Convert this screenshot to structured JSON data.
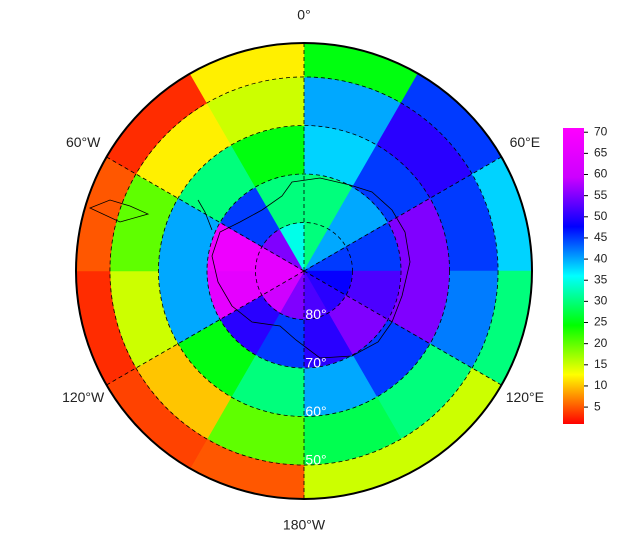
{
  "chart_data": {
    "type": "polar-heatmap",
    "lon_labels": [
      {
        "value": 0,
        "label": "0°"
      },
      {
        "value": 60,
        "label": "60°E"
      },
      {
        "value": 120,
        "label": "120°E"
      },
      {
        "value": 180,
        "label": "180°W"
      },
      {
        "value": 240,
        "label": "120°W"
      },
      {
        "value": 300,
        "label": "60°W"
      }
    ],
    "lat_circles": [
      {
        "value": -80,
        "label": "80°"
      },
      {
        "value": -70,
        "label": "70°"
      },
      {
        "value": -60,
        "label": "60°"
      },
      {
        "value": -50,
        "label": "50°"
      }
    ],
    "rlim": [
      -90,
      -43
    ],
    "lat_edges": [
      -90,
      -80,
      -70,
      -60,
      -50,
      -43
    ],
    "lon_edges": [
      0,
      30,
      60,
      90,
      120,
      150,
      180,
      210,
      240,
      270,
      300,
      330,
      360
    ],
    "values": [
      [
        30,
        40,
        45,
        48,
        50,
        52,
        55,
        60,
        65,
        65,
        55,
        35
      ],
      [
        30,
        40,
        45,
        52,
        55,
        50,
        45,
        50,
        65,
        67,
        45,
        30
      ],
      [
        38,
        45,
        55,
        55,
        45,
        40,
        30,
        25,
        40,
        40,
        30,
        25
      ],
      [
        40,
        50,
        45,
        42,
        30,
        28,
        20,
        10,
        15,
        20,
        12,
        15
      ],
      [
        25,
        45,
        38,
        30,
        15,
        15,
        5,
        4,
        3,
        5,
        3,
        12
      ]
    ],
    "zlim": [
      1,
      71
    ],
    "zticks": [
      5,
      10,
      15,
      20,
      25,
      30,
      35,
      40,
      45,
      50,
      55,
      60,
      65,
      70
    ],
    "colormap": [
      "#ff0000",
      "#ffff00",
      "#00ff00",
      "#00ffff",
      "#0000ff",
      "#cc00ff",
      "#ff00ff"
    ]
  }
}
